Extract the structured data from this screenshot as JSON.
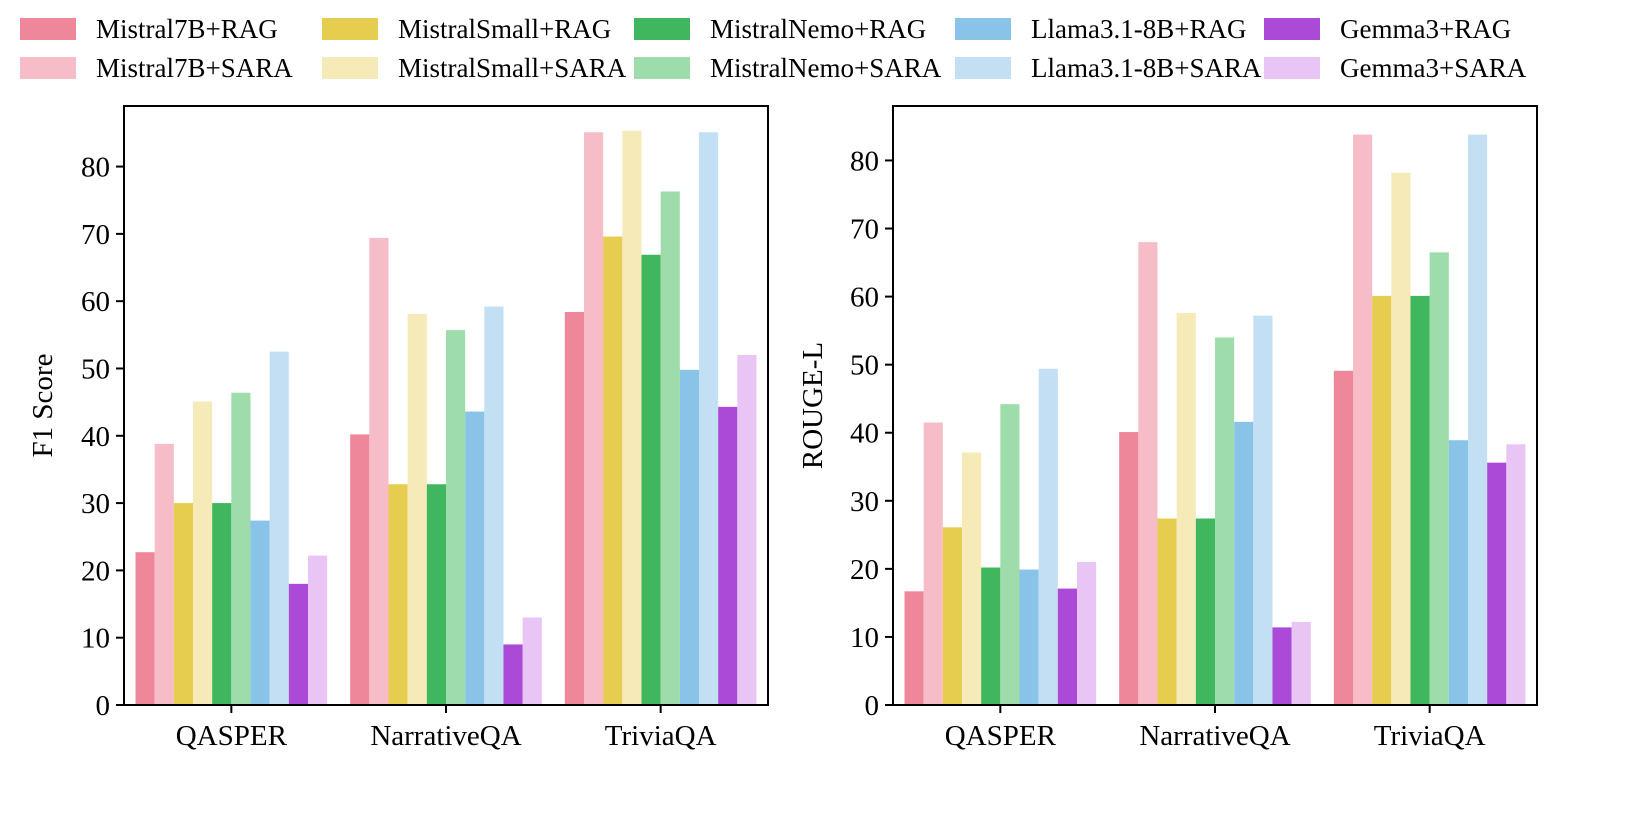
{
  "legend": {
    "items": [
      {
        "label": "Mistral7B+RAG",
        "color": "#ef879a"
      },
      {
        "label": "Mistral7B+SARA",
        "color": "#f6bdc8"
      },
      {
        "label": "MistralSmall+RAG",
        "color": "#e6cd4f"
      },
      {
        "label": "MistralSmall+SARA",
        "color": "#f6ebb8"
      },
      {
        "label": "MistralNemo+RAG",
        "color": "#40b75e"
      },
      {
        "label": "MistralNemo+SARA",
        "color": "#9fdcab"
      },
      {
        "label": "Llama3.1-8B+RAG",
        "color": "#89c3e8"
      },
      {
        "label": "Llama3.1-8B+SARA",
        "color": "#c3dff3"
      },
      {
        "label": "Gemma3+RAG",
        "color": "#aa4ad6"
      },
      {
        "label": "Gemma3+SARA",
        "color": "#e8c5f4"
      }
    ]
  },
  "chart_data": [
    {
      "type": "bar",
      "title": "",
      "xlabel": "",
      "ylabel": "F1 Score",
      "ylim": [
        0,
        89
      ],
      "yticks": [
        0,
        10,
        20,
        30,
        40,
        50,
        60,
        70,
        80
      ],
      "categories": [
        "QASPER",
        "NarrativeQA",
        "TriviaQA"
      ],
      "series": [
        {
          "name": "Mistral7B+RAG",
          "values": [
            22.7,
            40.2,
            58.4
          ]
        },
        {
          "name": "Mistral7B+SARA",
          "values": [
            38.8,
            69.4,
            85.1
          ]
        },
        {
          "name": "MistralSmall+RAG",
          "values": [
            30.0,
            32.8,
            69.6
          ]
        },
        {
          "name": "MistralSmall+SARA",
          "values": [
            45.1,
            58.1,
            85.3
          ]
        },
        {
          "name": "MistralNemo+RAG",
          "values": [
            30.0,
            32.8,
            66.9
          ]
        },
        {
          "name": "MistralNemo+SARA",
          "values": [
            46.4,
            55.7,
            76.3
          ]
        },
        {
          "name": "Llama3.1-8B+RAG",
          "values": [
            27.4,
            43.6,
            49.8
          ]
        },
        {
          "name": "Llama3.1-8B+SARA",
          "values": [
            52.5,
            59.2,
            85.1
          ]
        },
        {
          "name": "Gemma3+RAG",
          "values": [
            18.0,
            9.0,
            44.3
          ]
        },
        {
          "name": "Gemma3+SARA",
          "values": [
            22.2,
            13.0,
            52.0
          ]
        }
      ]
    },
    {
      "type": "bar",
      "title": "",
      "xlabel": "",
      "ylabel": "ROUGE-L",
      "ylim": [
        0,
        88
      ],
      "yticks": [
        0,
        10,
        20,
        30,
        40,
        50,
        60,
        70,
        80
      ],
      "categories": [
        "QASPER",
        "NarrativeQA",
        "TriviaQA"
      ],
      "series": [
        {
          "name": "Mistral7B+RAG",
          "values": [
            16.7,
            40.1,
            49.1
          ]
        },
        {
          "name": "Mistral7B+SARA",
          "values": [
            41.5,
            68.0,
            83.8
          ]
        },
        {
          "name": "MistralSmall+RAG",
          "values": [
            26.1,
            27.4,
            60.1
          ]
        },
        {
          "name": "MistralSmall+SARA",
          "values": [
            37.1,
            57.6,
            78.2
          ]
        },
        {
          "name": "MistralNemo+RAG",
          "values": [
            20.2,
            27.4,
            60.1
          ]
        },
        {
          "name": "MistralNemo+SARA",
          "values": [
            44.2,
            54.0,
            66.5
          ]
        },
        {
          "name": "Llama3.1-8B+RAG",
          "values": [
            19.9,
            41.6,
            38.9
          ]
        },
        {
          "name": "Llama3.1-8B+SARA",
          "values": [
            49.4,
            57.2,
            83.8
          ]
        },
        {
          "name": "Gemma3+RAG",
          "values": [
            17.1,
            11.4,
            35.6
          ]
        },
        {
          "name": "Gemma3+SARA",
          "values": [
            21.0,
            12.2,
            38.3
          ]
        }
      ]
    }
  ]
}
